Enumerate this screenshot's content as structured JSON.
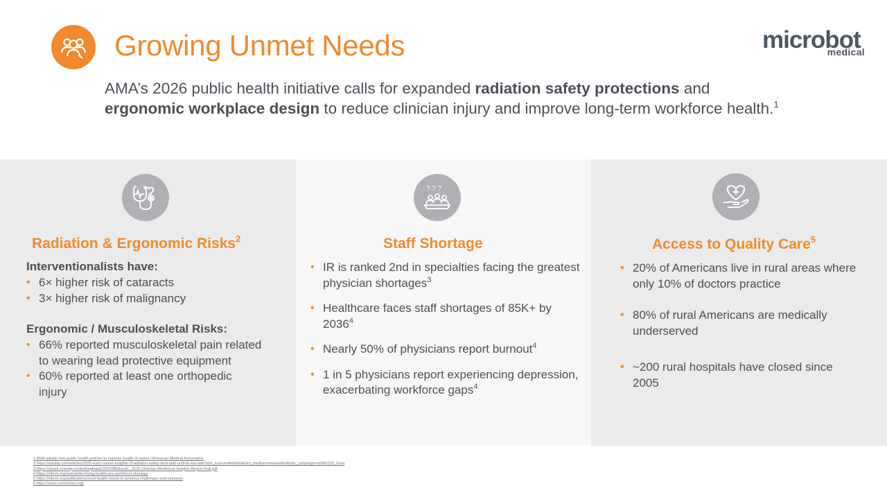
{
  "header": {
    "icon": "people-search-icon",
    "title": "Growing Unmet Needs",
    "logo_main": "microbot",
    "logo_sub": "medical"
  },
  "intro": {
    "part1": "AMA’s 2026 public health initiative calls for expanded ",
    "bold1": "radiation safety protections",
    "part2": " and ",
    "bold2": "ergonomic workplace design",
    "part3": " to reduce clinician injury and improve long-term workforce health.",
    "ref": "1"
  },
  "panels": [
    {
      "icon": "stethoscope-icon",
      "title": "Radiation & Ergonomic Risks",
      "ref": "2",
      "groups": [
        {
          "heading": "Interventionalists have:",
          "items": [
            {
              "text": "6× higher risk of cataracts"
            },
            {
              "text": "3× higher risk of malignancy"
            }
          ]
        },
        {
          "heading": "Ergonomic / Musculoskeletal Risks:",
          "items": [
            {
              "text": "66% reported musculoskeletal pain related to wearing lead protective equipment"
            },
            {
              "text": "60% reported at least one orthopedic injury"
            }
          ]
        }
      ]
    },
    {
      "icon": "questioning-group-icon",
      "title": "Staff Shortage",
      "items": [
        {
          "text": "IR is ranked 2nd in specialties facing the greatest physician shortages",
          "ref": "3"
        },
        {
          "text": "Healthcare faces staff shortages of 85K+ by 2036",
          "ref": "4"
        },
        {
          "text": "Nearly 50% of physicians report burnout",
          "ref": "4"
        },
        {
          "text": "1 in 5 physicians report experiencing depression, exacerbating workforce gaps",
          "ref": "4"
        }
      ]
    },
    {
      "icon": "heart-hand-care-icon",
      "title": "Access to Quality Care",
      "ref": "5",
      "items": [
        {
          "text": "20% of Americans live in rural areas where only 10% of doctors practice"
        },
        {
          "text": "80% of rural Americans are medically underserved"
        },
        {
          "text": "~200 rural hospitals have closed since 2005"
        }
      ]
    }
  ],
  "bullet_char": "•",
  "footnotes": [
    "1.AMA adopts new public health policies to improve health of nation | American Medical Association",
    "2.https://ixtoday.com/articles/2025-early-career-insights-2/radiation-safety-dont-wait-until-its-too-late?utm_source=linkedin&utm_medium=newsletter&utm_campaign=etOB1125_Gore",
    "3.https://axuall.com/wp-content/uploads/2023/08/Axuall-_2025-Clinician-Workforce-Insights-Report-final.pdf",
    "4.https://nihcm.org/newsletter/rising-healthcare-workforce-shortage",
    "5.https://nihcm.org/publications/rural-health-needs-in-america-challenges-and-solutions",
    "6.https://www.cvrmonline.org/"
  ],
  "colors": {
    "accent": "#ee8a2e",
    "text": "#4a4f57",
    "icon_gray": "#aeb0b3",
    "panel_gray": "#ebebeb",
    "panel_light": "#f7f7f7"
  }
}
